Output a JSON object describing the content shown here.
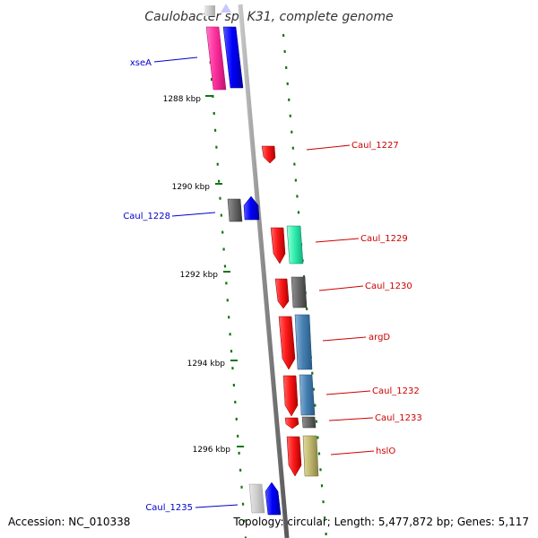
{
  "title": "Caulobacter sp. K31, complete genome",
  "accession": "Accession: NC_010338",
  "topology": "Topology: circular; Length: 5,477,872 bp; Genes: 5,117",
  "colors": {
    "forward_label": "#0000cc",
    "reverse_label": "#cc0000",
    "tick": "#117711",
    "backbone": "#888888"
  },
  "kbp_labels": [
    "1288 kbp",
    "1290 kbp",
    "1292 kbp",
    "1294 kbp",
    "1296 kbp"
  ],
  "genes": [
    {
      "id": "xseA",
      "label": "xseA",
      "strand": "forward"
    },
    {
      "id": "caul1227",
      "label": "Caul_1227",
      "strand": "reverse"
    },
    {
      "id": "caul1228",
      "label": "Caul_1228",
      "strand": "forward"
    },
    {
      "id": "caul1229",
      "label": "Caul_1229",
      "strand": "reverse"
    },
    {
      "id": "caul1230",
      "label": "Caul_1230",
      "strand": "reverse"
    },
    {
      "id": "argD",
      "label": "argD",
      "strand": "reverse"
    },
    {
      "id": "caul1232",
      "label": "Caul_1232",
      "strand": "reverse"
    },
    {
      "id": "caul1233",
      "label": "Caul_1233",
      "strand": "reverse"
    },
    {
      "id": "hslO",
      "label": "hslO",
      "strand": "reverse"
    },
    {
      "id": "caul1235",
      "label": "Caul_1235",
      "strand": "forward"
    }
  ]
}
